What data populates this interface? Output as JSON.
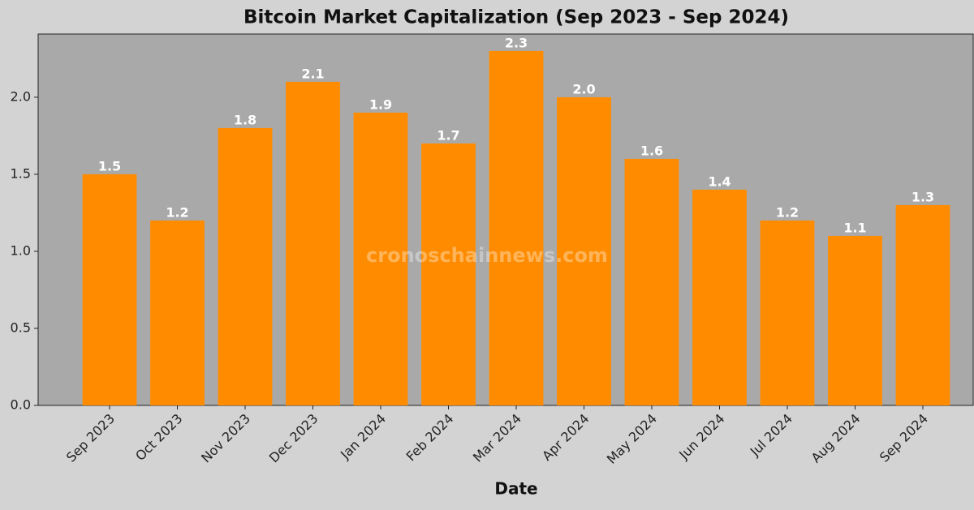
{
  "chart_data": {
    "type": "bar",
    "title": "Bitcoin Market Capitalization (Sep 2023 - Sep 2024)",
    "x_label": "Date",
    "watermark": "cronoschainnews.com",
    "categories": [
      "Sep 2023",
      "Oct 2023",
      "Nov 2023",
      "Dec 2023",
      "Jan 2024",
      "Feb 2024",
      "Mar 2024",
      "Apr 2024",
      "May 2024",
      "Jun 2024",
      "Jul 2024",
      "Aug 2024",
      "Sep 2024"
    ],
    "values": [
      1.5,
      1.2,
      1.8,
      2.1,
      1.9,
      1.7,
      2.3,
      2.0,
      1.6,
      1.4,
      1.2,
      1.1,
      1.3
    ],
    "value_labels": [
      "1.5",
      "1.2",
      "1.8",
      "2.1",
      "1.9",
      "1.7",
      "2.3",
      "2.0",
      "1.6",
      "1.4",
      "1.2",
      "1.1",
      "1.3"
    ],
    "color": "#ff8c00",
    "ylim": [
      0,
      2.41
    ],
    "yticks": [
      {
        "value": 0,
        "label": "0.0"
      },
      {
        "value": 0.5,
        "label": "0.5"
      },
      {
        "value": 1,
        "label": "1.0"
      },
      {
        "value": 1.5,
        "label": "1.5"
      },
      {
        "value": 2,
        "label": "2.0"
      }
    ]
  }
}
